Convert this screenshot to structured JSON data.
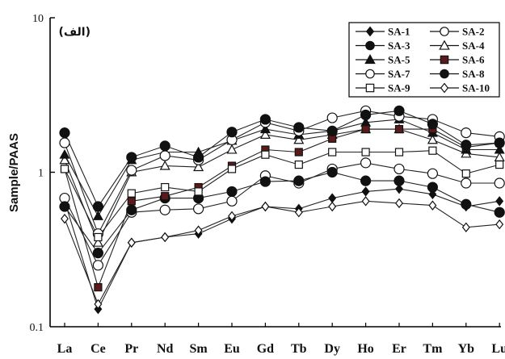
{
  "chart_data": {
    "type": "line",
    "panel_label": "(الف)",
    "ylabel": "Sample/PAAS",
    "xlabel": "",
    "yscale": "log",
    "ylim": [
      0.1,
      10
    ],
    "ytick_labels": [
      "10",
      "1",
      "0.1"
    ],
    "legend_position": "top-right",
    "categories": [
      "La",
      "Ce",
      "Pr",
      "Nd",
      "Sm",
      "Eu",
      "Gd",
      "Tb",
      "Dy",
      "Ho",
      "Er",
      "Tm",
      "Yb",
      "Lu"
    ],
    "series": [
      {
        "name": "SA-1",
        "marker": "diamond",
        "fill": "filled",
        "values": [
          0.65,
          0.13,
          0.35,
          0.38,
          0.4,
          0.5,
          0.6,
          0.58,
          0.68,
          0.75,
          0.78,
          0.72,
          0.6,
          0.65
        ]
      },
      {
        "name": "SA-2",
        "marker": "circle",
        "fill": "open",
        "values": [
          0.68,
          0.25,
          0.55,
          0.57,
          0.58,
          0.65,
          0.95,
          0.85,
          1.05,
          1.15,
          1.05,
          0.98,
          0.85,
          0.85
        ]
      },
      {
        "name": "SA-3",
        "marker": "circle",
        "fill": "filled",
        "values": [
          0.6,
          0.3,
          0.57,
          0.68,
          0.68,
          0.75,
          0.87,
          0.88,
          1.0,
          0.88,
          0.88,
          0.8,
          0.62,
          0.55
        ]
      },
      {
        "name": "SA-4",
        "marker": "triangle",
        "fill": "open",
        "values": [
          1.2,
          0.35,
          1.0,
          1.1,
          1.08,
          1.4,
          1.75,
          1.62,
          1.75,
          1.9,
          1.9,
          1.62,
          1.32,
          1.25
        ]
      },
      {
        "name": "SA-5",
        "marker": "triangle",
        "fill": "filled",
        "values": [
          1.3,
          0.52,
          1.2,
          1.35,
          1.35,
          1.6,
          1.9,
          1.75,
          1.85,
          2.1,
          2.2,
          1.8,
          1.4,
          1.4
        ]
      },
      {
        "name": "SA-6",
        "marker": "square",
        "fill": "filled",
        "values": [
          1.05,
          0.18,
          0.65,
          0.7,
          0.8,
          1.1,
          1.4,
          1.35,
          1.65,
          1.9,
          1.9,
          1.9,
          1.45,
          1.55
        ]
      },
      {
        "name": "SA-7",
        "marker": "circle",
        "fill": "open",
        "values": [
          1.55,
          0.4,
          1.03,
          1.28,
          1.2,
          1.62,
          2.1,
          1.85,
          2.25,
          2.5,
          2.3,
          2.2,
          1.8,
          1.7
        ]
      },
      {
        "name": "SA-8",
        "marker": "circle",
        "fill": "filled",
        "values": [
          1.8,
          0.6,
          1.25,
          1.48,
          1.25,
          1.82,
          2.2,
          1.95,
          1.85,
          2.35,
          2.5,
          2.05,
          1.5,
          1.55
        ]
      },
      {
        "name": "SA-9",
        "marker": "square",
        "fill": "open",
        "values": [
          1.05,
          0.38,
          0.73,
          0.8,
          0.75,
          1.05,
          1.3,
          1.12,
          1.35,
          1.35,
          1.35,
          1.38,
          0.98,
          1.12
        ]
      },
      {
        "name": "SA-10",
        "marker": "diamond",
        "fill": "open",
        "values": [
          0.5,
          0.14,
          0.35,
          0.38,
          0.42,
          0.52,
          0.6,
          0.55,
          0.6,
          0.65,
          0.63,
          0.61,
          0.44,
          0.46
        ]
      }
    ]
  }
}
